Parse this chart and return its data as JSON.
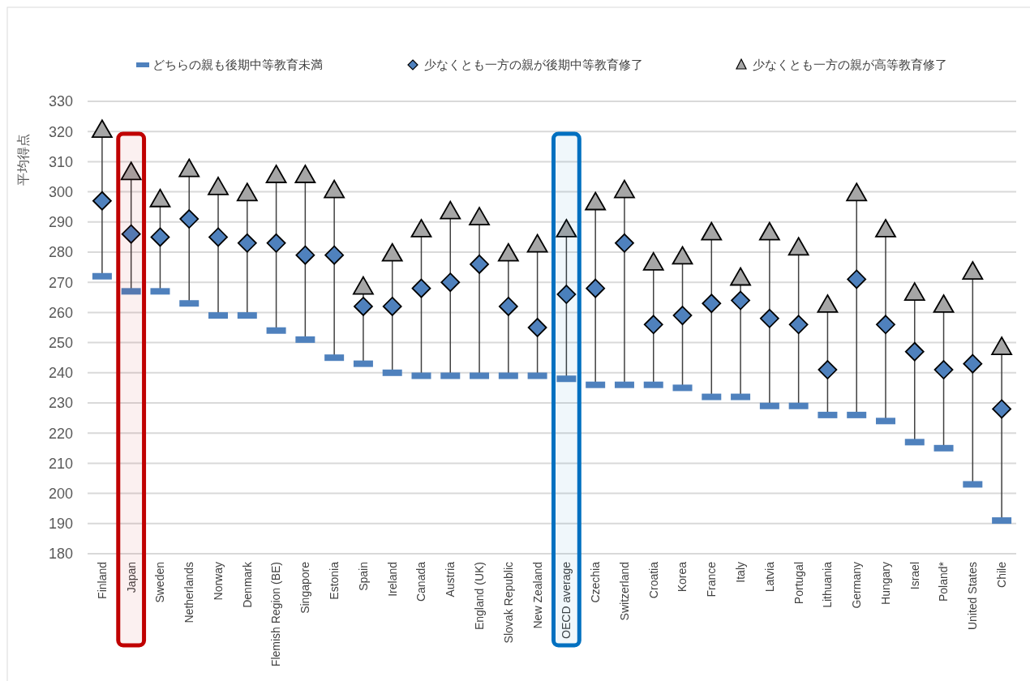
{
  "chart_data": {
    "type": "scatter",
    "ylabel": "平均得点",
    "categories": [
      "Finland",
      "Japan",
      "Sweden",
      "Netherlands",
      "Norway",
      "Denmark",
      "Flemish Region (BE)",
      "Singapore",
      "Estonia",
      "Spain",
      "Ireland",
      "Canada",
      "Austria",
      "England (UK)",
      "Slovak Republic",
      "New Zealand",
      "OECD average",
      "Czechia",
      "Switzerland",
      "Croatia",
      "Korea",
      "France",
      "Italy",
      "Latvia",
      "Portugal",
      "Lithuania",
      "Germany",
      "Hungary",
      "Israel",
      "Poland*",
      "United States",
      "Chile"
    ],
    "series": [
      {
        "name": "どちらの親も後期中等教育未満",
        "color": "#4f81bd",
        "values": [
          272,
          267,
          267,
          263,
          259,
          259,
          254,
          251,
          245,
          243,
          240,
          239,
          239,
          239,
          239,
          239,
          238,
          236,
          236,
          236,
          235,
          232,
          232,
          229,
          229,
          226,
          226,
          224,
          217,
          215,
          203,
          191
        ]
      },
      {
        "name": "少なくとも一方の親が後期中等教育修了",
        "color": "#4f81bd",
        "marker": "diamond",
        "values": [
          297,
          286,
          285,
          291,
          285,
          283,
          283,
          279,
          279,
          262,
          262,
          268,
          270,
          276,
          262,
          255,
          266,
          268,
          283,
          256,
          259,
          263,
          264,
          258,
          256,
          241,
          271,
          256,
          247,
          241,
          243,
          228
        ]
      },
      {
        "name": "少なくとも一方の親が高等教育修了",
        "color": "#a6a6a6",
        "marker": "triangle",
        "values": [
          320,
          306,
          297,
          307,
          301,
          299,
          305,
          305,
          300,
          268,
          279,
          287,
          293,
          291,
          279,
          282,
          287,
          296,
          300,
          276,
          278,
          286,
          271,
          286,
          281,
          262,
          299,
          287,
          266,
          262,
          273,
          248
        ]
      }
    ],
    "ylim": [
      180,
      330
    ],
    "yticks": [
      180,
      190,
      200,
      210,
      220,
      230,
      240,
      250,
      260,
      270,
      280,
      290,
      300,
      310,
      320,
      330
    ],
    "grid": "y",
    "legend": "top",
    "bands": [
      {
        "axis": "x",
        "from": "Japan",
        "to": "Japan",
        "color": "#c00000"
      },
      {
        "axis": "x",
        "from": "OECD average",
        "to": "OECD average",
        "color": "#0070c0"
      }
    ]
  }
}
